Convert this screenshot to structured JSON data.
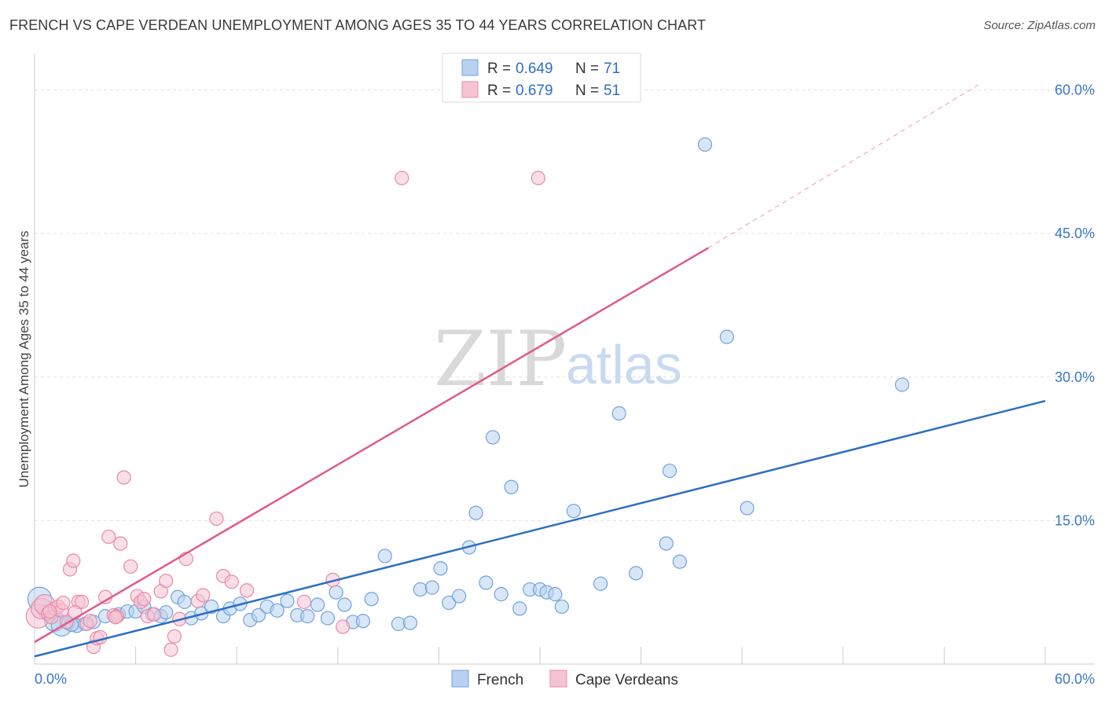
{
  "header": {
    "title": "FRENCH VS CAPE VERDEAN UNEMPLOYMENT AMONG AGES 35 TO 44 YEARS CORRELATION CHART",
    "source": "Source: ZipAtlas.com"
  },
  "watermark": {
    "zip": "ZIP",
    "atlas": "atlas"
  },
  "legend": {
    "r_label": "R = ",
    "n_label": "N = ",
    "items": [
      {
        "r": "0.649",
        "n": "71",
        "color": "#6fa3e0",
        "fill": "#b8d1f0"
      },
      {
        "r": "0.679",
        "n": "51",
        "color": "#e88aa8",
        "fill": "#f6c3d3"
      }
    ]
  },
  "bottom_legend": [
    {
      "label": "French",
      "fill": "#b8d1f0",
      "stroke": "#6fa3e0"
    },
    {
      "label": "Cape Verdeans",
      "fill": "#f6c3d3",
      "stroke": "#e88aa8"
    }
  ],
  "chart_data": {
    "type": "scatter",
    "title": "FRENCH VS CAPE VERDEAN UNEMPLOYMENT AMONG AGES 35 TO 44 YEARS CORRELATION CHART",
    "ylabel": "Unemployment Among Ages 35 to 44 years",
    "xlabel": "",
    "xlim": [
      0,
      60
    ],
    "ylim": [
      0,
      63
    ],
    "x_tick_labels": [
      "0.0%",
      "60.0%"
    ],
    "y_ticks": [
      {
        "value": 15,
        "label": "15.0%"
      },
      {
        "value": 30,
        "label": "30.0%"
      },
      {
        "value": 45,
        "label": "45.0%"
      },
      {
        "value": 60,
        "label": "60.0%"
      }
    ],
    "grid": true,
    "legend_position": "top-center",
    "series": [
      {
        "name": "French",
        "color": "#6fa3e0",
        "fill": "#b8d1f0",
        "trend": {
          "x0": 0,
          "y0": 0.8,
          "x1": 60,
          "y1": 27.5,
          "color": "#2d6fc2"
        },
        "points": [
          [
            0.3,
            6.8
          ],
          [
            0.6,
            5.5
          ],
          [
            0.9,
            5.0
          ],
          [
            1.2,
            4.5
          ],
          [
            1.6,
            4.0
          ],
          [
            2.0,
            4.3
          ],
          [
            2.5,
            4.0
          ],
          [
            3.0,
            4.2
          ],
          [
            3.5,
            4.4
          ],
          [
            4.2,
            5.0
          ],
          [
            5.0,
            5.2
          ],
          [
            5.5,
            5.5
          ],
          [
            6.0,
            5.5
          ],
          [
            6.5,
            6.0
          ],
          [
            7.0,
            5.2
          ],
          [
            7.5,
            5.0
          ],
          [
            7.8,
            5.4
          ],
          [
            8.5,
            7.0
          ],
          [
            8.9,
            6.5
          ],
          [
            9.3,
            4.8
          ],
          [
            9.9,
            5.3
          ],
          [
            10.5,
            6.0
          ],
          [
            11.2,
            5.0
          ],
          [
            11.6,
            5.8
          ],
          [
            12.2,
            6.3
          ],
          [
            12.8,
            4.6
          ],
          [
            13.3,
            5.1
          ],
          [
            13.8,
            6.0
          ],
          [
            14.4,
            5.6
          ],
          [
            15.0,
            6.6
          ],
          [
            15.6,
            5.1
          ],
          [
            16.2,
            5.0
          ],
          [
            16.8,
            6.2
          ],
          [
            17.4,
            4.8
          ],
          [
            17.9,
            7.5
          ],
          [
            18.4,
            6.2
          ],
          [
            18.9,
            4.4
          ],
          [
            19.5,
            4.5
          ],
          [
            20.0,
            6.8
          ],
          [
            20.8,
            11.3
          ],
          [
            21.6,
            4.2
          ],
          [
            22.3,
            4.3
          ],
          [
            22.9,
            7.8
          ],
          [
            23.6,
            8.0
          ],
          [
            24.1,
            10.0
          ],
          [
            24.6,
            6.4
          ],
          [
            25.2,
            7.1
          ],
          [
            25.8,
            12.2
          ],
          [
            26.2,
            15.8
          ],
          [
            26.8,
            8.5
          ],
          [
            27.2,
            23.7
          ],
          [
            27.7,
            7.3
          ],
          [
            28.3,
            18.5
          ],
          [
            28.8,
            5.8
          ],
          [
            29.4,
            7.8
          ],
          [
            30.0,
            7.8
          ],
          [
            30.4,
            7.5
          ],
          [
            30.9,
            7.3
          ],
          [
            31.3,
            6.0
          ],
          [
            32.0,
            16.0
          ],
          [
            33.6,
            8.4
          ],
          [
            34.7,
            26.2
          ],
          [
            35.7,
            9.5
          ],
          [
            37.7,
            20.2
          ],
          [
            37.5,
            12.6
          ],
          [
            38.3,
            10.7
          ],
          [
            39.8,
            54.3
          ],
          [
            41.1,
            34.2
          ],
          [
            42.3,
            16.3
          ],
          [
            51.5,
            29.2
          ],
          [
            2.2,
            4.1
          ]
        ]
      },
      {
        "name": "Cape Verdeans",
        "color": "#e88aa8",
        "fill": "#f6c3d3",
        "trend": {
          "x0": 0,
          "y0": 2.3,
          "x1": 40,
          "y1": 43.5,
          "color": "#e05a87",
          "dash_to": {
            "x": 56,
            "y": 60.5
          }
        },
        "points": [
          [
            0.2,
            5.0
          ],
          [
            0.4,
            5.8
          ],
          [
            0.6,
            6.2
          ],
          [
            0.8,
            5.3
          ],
          [
            1.0,
            4.9
          ],
          [
            1.2,
            5.8
          ],
          [
            1.4,
            6.0
          ],
          [
            1.6,
            5.6
          ],
          [
            1.9,
            4.4
          ],
          [
            2.1,
            9.9
          ],
          [
            2.3,
            10.8
          ],
          [
            2.6,
            6.5
          ],
          [
            2.8,
            6.5
          ],
          [
            3.1,
            4.2
          ],
          [
            3.5,
            1.8
          ],
          [
            3.7,
            2.7
          ],
          [
            3.9,
            2.8
          ],
          [
            4.2,
            7.0
          ],
          [
            4.4,
            13.3
          ],
          [
            4.7,
            5.1
          ],
          [
            4.9,
            5.0
          ],
          [
            5.1,
            12.6
          ],
          [
            5.3,
            19.5
          ],
          [
            5.7,
            10.2
          ],
          [
            6.1,
            7.1
          ],
          [
            6.3,
            6.5
          ],
          [
            6.7,
            5.0
          ],
          [
            7.1,
            5.2
          ],
          [
            7.5,
            7.6
          ],
          [
            7.8,
            8.7
          ],
          [
            8.1,
            1.5
          ],
          [
            8.3,
            2.9
          ],
          [
            8.6,
            4.7
          ],
          [
            9.0,
            11.0
          ],
          [
            9.7,
            6.6
          ],
          [
            10.0,
            7.2
          ],
          [
            10.8,
            15.2
          ],
          [
            11.2,
            9.2
          ],
          [
            11.7,
            8.6
          ],
          [
            12.6,
            7.7
          ],
          [
            16.0,
            6.5
          ],
          [
            17.7,
            8.8
          ],
          [
            18.3,
            3.9
          ],
          [
            21.8,
            50.8
          ],
          [
            29.9,
            50.8
          ],
          [
            0.9,
            5.5
          ],
          [
            1.7,
            6.4
          ],
          [
            2.4,
            5.4
          ],
          [
            3.3,
            4.5
          ],
          [
            4.8,
            4.9
          ],
          [
            6.5,
            6.8
          ]
        ]
      }
    ]
  }
}
